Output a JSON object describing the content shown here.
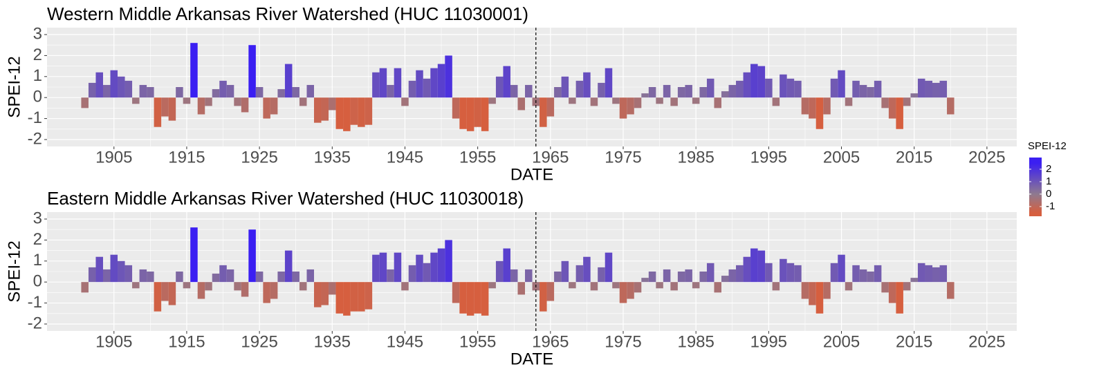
{
  "chart_data": [
    {
      "type": "bar",
      "title": "Western Middle Arkansas River Watershed (HUC 11030001)",
      "x_label": "DATE",
      "y_label": "SPEI-12",
      "x": [
        1901,
        1902,
        1903,
        1904,
        1905,
        1906,
        1907,
        1908,
        1909,
        1910,
        1911,
        1912,
        1913,
        1914,
        1915,
        1916,
        1917,
        1918,
        1919,
        1920,
        1921,
        1922,
        1923,
        1924,
        1925,
        1926,
        1927,
        1928,
        1929,
        1930,
        1931,
        1932,
        1933,
        1934,
        1935,
        1936,
        1937,
        1938,
        1939,
        1940,
        1941,
        1942,
        1943,
        1944,
        1945,
        1946,
        1947,
        1948,
        1949,
        1950,
        1951,
        1952,
        1953,
        1954,
        1955,
        1956,
        1957,
        1958,
        1959,
        1960,
        1961,
        1962,
        1963,
        1964,
        1965,
        1966,
        1967,
        1968,
        1969,
        1970,
        1971,
        1972,
        1973,
        1974,
        1975,
        1976,
        1977,
        1978,
        1979,
        1980,
        1981,
        1982,
        1983,
        1984,
        1985,
        1986,
        1987,
        1988,
        1989,
        1990,
        1991,
        1992,
        1993,
        1994,
        1995,
        1996,
        1997,
        1998,
        1999,
        2000,
        2001,
        2002,
        2003,
        2004,
        2005,
        2006,
        2007,
        2008,
        2009,
        2010,
        2011,
        2012,
        2013,
        2014,
        2015,
        2016,
        2017,
        2018,
        2019,
        2020
      ],
      "values": [
        -0.5,
        0.7,
        1.2,
        0.6,
        1.3,
        1.0,
        0.8,
        -0.3,
        0.6,
        0.5,
        -1.4,
        -0.9,
        -1.1,
        0.5,
        -0.3,
        2.6,
        -0.8,
        -0.4,
        0.4,
        0.8,
        0.6,
        -0.4,
        -0.7,
        2.5,
        0.5,
        -1.0,
        -0.8,
        0.4,
        1.6,
        0.5,
        -0.4,
        0.6,
        -1.2,
        -1.1,
        -0.6,
        -1.5,
        -1.6,
        -1.3,
        -1.4,
        -1.3,
        1.2,
        1.4,
        0.6,
        1.4,
        -0.4,
        0.8,
        1.3,
        0.9,
        1.4,
        1.6,
        2.0,
        -1.0,
        -1.5,
        -1.6,
        -1.4,
        -1.6,
        -0.3,
        1.0,
        1.5,
        0.6,
        -0.6,
        0.6,
        -0.4,
        -1.4,
        -0.9,
        0.5,
        1.0,
        -0.3,
        0.8,
        1.2,
        -0.4,
        0.7,
        1.4,
        -0.3,
        -1.0,
        -0.8,
        -0.5,
        0.2,
        0.5,
        -0.3,
        0.6,
        -0.4,
        0.5,
        0.6,
        -0.3,
        0.5,
        0.9,
        -0.5,
        0.3,
        0.6,
        0.8,
        1.2,
        1.6,
        1.5,
        0.9,
        -0.4,
        1.1,
        0.9,
        0.8,
        -0.8,
        -1.0,
        -1.5,
        -0.8,
        0.9,
        1.3,
        -0.4,
        0.8,
        0.6,
        0.5,
        0.8,
        -0.5,
        -1.0,
        -1.5,
        -0.4,
        0.2,
        0.9,
        0.8,
        0.7,
        0.8,
        -0.8
      ],
      "xlim": [
        1895.8,
        2029.1
      ],
      "xticks": [
        1905,
        1915,
        1925,
        1935,
        1945,
        1955,
        1965,
        1975,
        1985,
        1995,
        2005,
        2015,
        2025
      ],
      "ylim": [
        -2.33,
        3.33
      ],
      "yticks": [
        -2,
        -1,
        0,
        1,
        2,
        3
      ],
      "vline": 1963,
      "grid": true
    },
    {
      "type": "bar",
      "title": "Eastern Middle Arkansas River Watershed (HUC 11030018)",
      "x_label": "DATE",
      "y_label": "SPEI-12",
      "x": [
        1901,
        1902,
        1903,
        1904,
        1905,
        1906,
        1907,
        1908,
        1909,
        1910,
        1911,
        1912,
        1913,
        1914,
        1915,
        1916,
        1917,
        1918,
        1919,
        1920,
        1921,
        1922,
        1923,
        1924,
        1925,
        1926,
        1927,
        1928,
        1929,
        1930,
        1931,
        1932,
        1933,
        1934,
        1935,
        1936,
        1937,
        1938,
        1939,
        1940,
        1941,
        1942,
        1943,
        1944,
        1945,
        1946,
        1947,
        1948,
        1949,
        1950,
        1951,
        1952,
        1953,
        1954,
        1955,
        1956,
        1957,
        1958,
        1959,
        1960,
        1961,
        1962,
        1963,
        1964,
        1965,
        1966,
        1967,
        1968,
        1969,
        1970,
        1971,
        1972,
        1973,
        1974,
        1975,
        1976,
        1977,
        1978,
        1979,
        1980,
        1981,
        1982,
        1983,
        1984,
        1985,
        1986,
        1987,
        1988,
        1989,
        1990,
        1991,
        1992,
        1993,
        1994,
        1995,
        1996,
        1997,
        1998,
        1999,
        2000,
        2001,
        2002,
        2003,
        2004,
        2005,
        2006,
        2007,
        2008,
        2009,
        2010,
        2011,
        2012,
        2013,
        2014,
        2015,
        2016,
        2017,
        2018,
        2019,
        2020
      ],
      "values": [
        -0.5,
        0.7,
        1.2,
        0.6,
        1.3,
        1.0,
        0.8,
        -0.3,
        0.6,
        0.5,
        -1.4,
        -0.9,
        -1.1,
        0.5,
        -0.3,
        2.6,
        -0.8,
        -0.4,
        0.4,
        0.8,
        0.6,
        -0.4,
        -0.7,
        2.5,
        0.5,
        -1.0,
        -0.8,
        0.5,
        1.5,
        0.5,
        -0.4,
        0.6,
        -1.2,
        -1.1,
        -0.6,
        -1.5,
        -1.6,
        -1.4,
        -1.4,
        -1.3,
        1.3,
        1.4,
        0.6,
        1.4,
        -0.4,
        0.8,
        1.3,
        0.9,
        1.4,
        1.6,
        2.0,
        -1.0,
        -1.5,
        -1.6,
        -1.5,
        -1.6,
        -0.3,
        1.0,
        1.6,
        0.6,
        -0.6,
        0.6,
        -0.4,
        -1.4,
        -0.9,
        0.5,
        1.0,
        -0.3,
        0.8,
        1.2,
        -0.4,
        0.7,
        1.4,
        -0.3,
        -1.0,
        -0.8,
        -0.5,
        0.2,
        0.5,
        -0.3,
        0.6,
        -0.4,
        0.5,
        0.6,
        -0.3,
        0.5,
        0.9,
        -0.5,
        0.3,
        0.6,
        0.8,
        1.2,
        1.6,
        1.5,
        0.9,
        -0.4,
        1.1,
        0.9,
        0.8,
        -0.8,
        -1.1,
        -1.5,
        -0.8,
        0.9,
        1.3,
        -0.4,
        0.8,
        0.6,
        0.5,
        0.8,
        -0.5,
        -1.0,
        -1.5,
        -0.4,
        0.2,
        0.9,
        0.8,
        0.7,
        0.8,
        -0.8
      ],
      "xlim": [
        1895.8,
        2029.1
      ],
      "xticks": [
        1905,
        1915,
        1925,
        1935,
        1945,
        1955,
        1965,
        1975,
        1985,
        1995,
        2005,
        2015,
        2025
      ],
      "ylim": [
        -2.33,
        3.33
      ],
      "yticks": [
        -2,
        -1,
        0,
        1,
        2,
        3
      ],
      "vline": 1963,
      "grid": true
    }
  ],
  "legend": {
    "title": "SPEI-12",
    "ticks": [
      2,
      1,
      0,
      -1
    ],
    "limits": [
      -1.78,
      2.94
    ],
    "color_stops": [
      -1.5,
      0,
      2.5
    ],
    "colors": [
      "#d65f3f",
      "#8f7a8f",
      "#3b1ff2"
    ]
  }
}
